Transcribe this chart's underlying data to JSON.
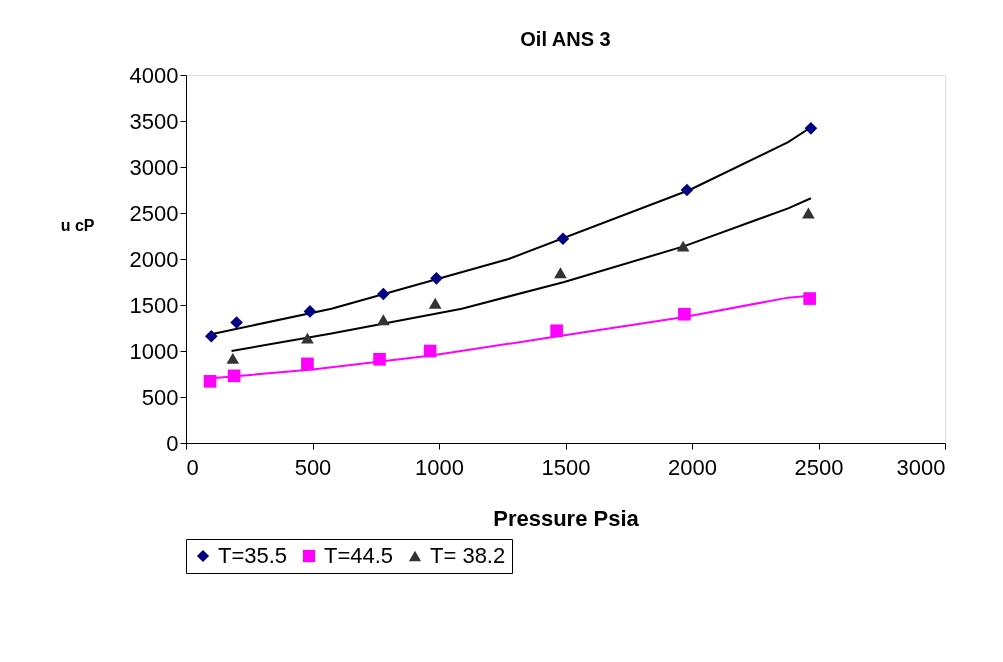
{
  "chart_data": {
    "type": "scatter",
    "title": "Oil ANS 3",
    "xlabel": "Pressure Psia",
    "ylabel": "u cP",
    "xlim": [
      0,
      3000
    ],
    "xticks": [
      0,
      500,
      1000,
      1500,
      2000,
      2500,
      3000
    ],
    "ylim": [
      0,
      4000
    ],
    "yticks": [
      0,
      500,
      1000,
      1500,
      2000,
      2500,
      3000,
      3500,
      4000
    ],
    "grid": false,
    "legend": "bottom",
    "series": [
      {
        "name": "T=35.5",
        "marker": "diamond",
        "color": "#000080",
        "x": [
          100,
          200,
          490,
          780,
          990,
          1490,
          1980,
          2470
        ],
        "values": [
          1160,
          1310,
          1430,
          1620,
          1790,
          2220,
          2750,
          3420
        ]
      },
      {
        "name": "T=44.5",
        "marker": "square",
        "color": "#ff00ff",
        "x": [
          95,
          190,
          480,
          765,
          965,
          1465,
          1970,
          2465
        ],
        "values": [
          670,
          730,
          860,
          910,
          1000,
          1220,
          1400,
          1570
        ]
      },
      {
        "name": "T= 38.2",
        "marker": "triangle",
        "color": "#333333",
        "x": [
          185,
          480,
          780,
          985,
          1480,
          1965,
          2460
        ],
        "values": [
          920,
          1140,
          1340,
          1520,
          1850,
          2140,
          2500
        ]
      },
      {
        "type": "line",
        "marker": "none",
        "color": "#000000",
        "x": [
          95,
          575,
          1275,
          1990,
          2380,
          2475
        ],
        "values": [
          1180,
          1460,
          2000,
          2750,
          3270,
          3440
        ]
      },
      {
        "type": "line",
        "marker": "none",
        "color": "#ff00ff",
        "x": [
          90,
          500,
          970,
          1470,
          1970,
          2380,
          2465
        ],
        "values": [
          700,
          800,
          950,
          1160,
          1370,
          1580,
          1600
        ]
      },
      {
        "type": "line",
        "marker": "none",
        "color": "#000000",
        "x": [
          180,
          575,
          1090,
          1495,
          1970,
          2380,
          2470
        ],
        "values": [
          1000,
          1190,
          1460,
          1750,
          2140,
          2550,
          2660
        ]
      }
    ]
  }
}
